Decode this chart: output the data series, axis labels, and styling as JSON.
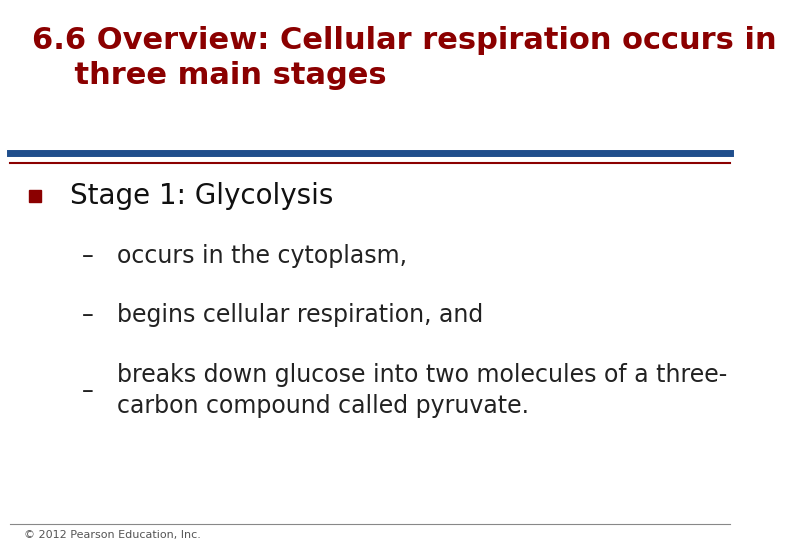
{
  "title_line1": "6.6 Overview: Cellular respiration occurs in",
  "title_line2": "    three main stages",
  "title_color": "#8B0000",
  "title_fontsize": 22,
  "divider_color_top": "#1F4E8C",
  "divider_color_bottom": "#8B0000",
  "bullet_color": "#8B0000",
  "bullet_text": "Stage 1: Glycolysis",
  "bullet_fontsize": 20,
  "sub_bullets": [
    "occurs in the cytoplasm,",
    "begins cellular respiration, and",
    "breaks down glucose into two molecules of a three-\ncarbon compound called pyruvate."
  ],
  "sub_bullet_fontsize": 17,
  "sub_bullet_color": "#222222",
  "footer_text": "© 2012 Pearson Education, Inc.",
  "footer_fontsize": 8,
  "footer_color": "#555555",
  "bg_color": "#FFFFFF"
}
